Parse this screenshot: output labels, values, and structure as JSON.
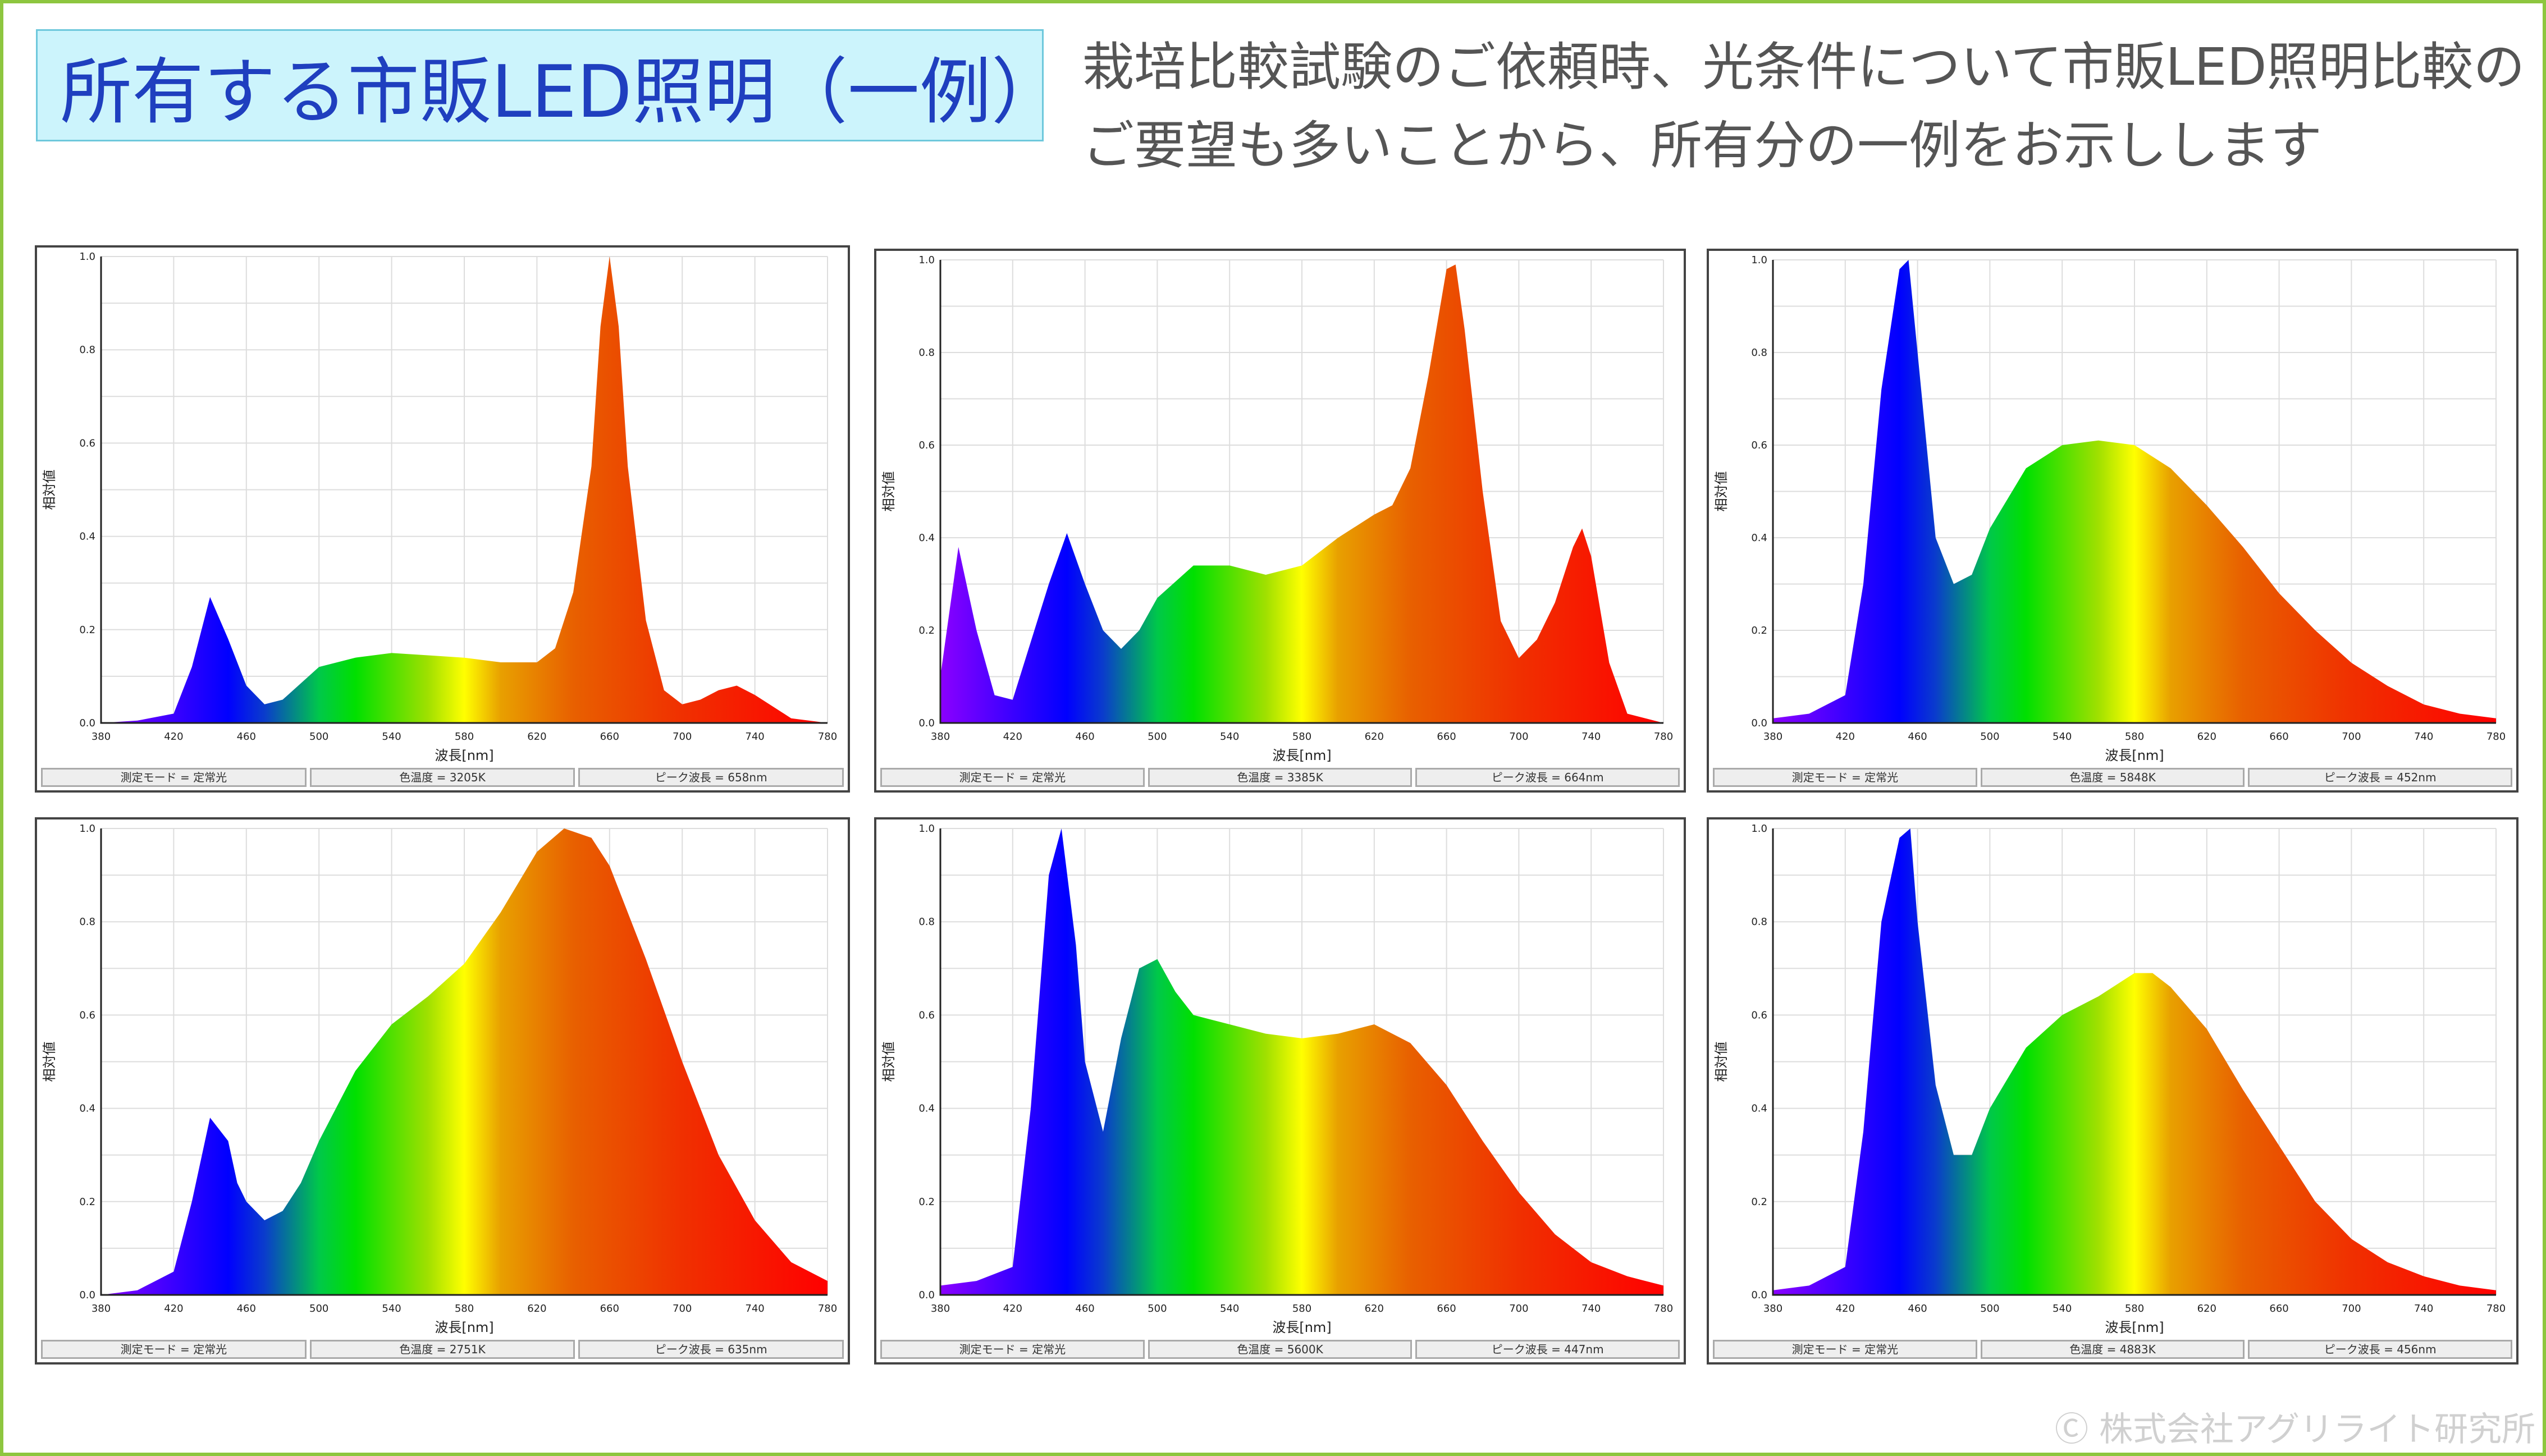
{
  "header": {
    "title": "所有する市販LED照明（一例）",
    "description_line1": "栽培比較試験のご依頼時、光条件について市販LED照明比較の",
    "description_line2": "ご要望も多いことから、所有分の一例をお示しします",
    "copyright": "Ⓒ 株式会社アグリライト研究所"
  },
  "colors": {
    "frame_border": "#8dc63f",
    "title_bg": "#ccf4fc",
    "title_text": "#1f3fbf"
  },
  "chart_axes": {
    "xlabel": "波長[nm]",
    "ylabel": "相対値",
    "xlim": [
      380,
      780
    ],
    "ylim": [
      0,
      1.0
    ],
    "xticks": [
      380,
      420,
      460,
      500,
      540,
      580,
      620,
      660,
      700,
      740,
      780
    ],
    "yticks": [
      "0.0",
      "0.2",
      "0.4",
      "0.6",
      "0.8",
      "1.0"
    ],
    "grid": true
  },
  "chart_data": [
    {
      "type": "area",
      "x": [
        380,
        400,
        420,
        430,
        440,
        450,
        460,
        470,
        480,
        500,
        520,
        540,
        560,
        580,
        600,
        620,
        630,
        640,
        650,
        655,
        660,
        665,
        670,
        680,
        690,
        700,
        710,
        720,
        730,
        740,
        760,
        780
      ],
      "y": [
        0,
        0.005,
        0.02,
        0.12,
        0.27,
        0.18,
        0.08,
        0.04,
        0.05,
        0.12,
        0.14,
        0.15,
        0.145,
        0.14,
        0.13,
        0.13,
        0.16,
        0.28,
        0.55,
        0.85,
        1.0,
        0.85,
        0.55,
        0.22,
        0.07,
        0.04,
        0.05,
        0.07,
        0.08,
        0.06,
        0.01,
        0.0
      ],
      "status": [
        "測定モード = 定常光",
        "色温度 = 3205K",
        "ピーク波長 = 658nm"
      ]
    },
    {
      "type": "area",
      "x": [
        380,
        390,
        400,
        410,
        420,
        440,
        450,
        460,
        470,
        480,
        490,
        500,
        520,
        540,
        560,
        580,
        600,
        620,
        630,
        640,
        650,
        660,
        665,
        670,
        680,
        690,
        700,
        710,
        720,
        730,
        735,
        740,
        750,
        760,
        780
      ],
      "y": [
        0.1,
        0.38,
        0.2,
        0.06,
        0.05,
        0.3,
        0.41,
        0.3,
        0.2,
        0.16,
        0.2,
        0.27,
        0.34,
        0.34,
        0.32,
        0.34,
        0.4,
        0.45,
        0.47,
        0.55,
        0.75,
        0.98,
        0.99,
        0.85,
        0.5,
        0.22,
        0.14,
        0.18,
        0.26,
        0.38,
        0.42,
        0.36,
        0.13,
        0.02,
        0.0
      ],
      "status": [
        "測定モード = 定常光",
        "色温度 = 3385K",
        "ピーク波長 = 664nm"
      ]
    },
    {
      "type": "area",
      "x": [
        380,
        400,
        420,
        430,
        440,
        450,
        455,
        460,
        470,
        480,
        490,
        500,
        520,
        540,
        560,
        580,
        600,
        620,
        640,
        660,
        680,
        700,
        720,
        740,
        760,
        780
      ],
      "y": [
        0.01,
        0.02,
        0.06,
        0.3,
        0.72,
        0.98,
        1.0,
        0.8,
        0.4,
        0.3,
        0.32,
        0.42,
        0.55,
        0.6,
        0.61,
        0.6,
        0.55,
        0.47,
        0.38,
        0.28,
        0.2,
        0.13,
        0.08,
        0.04,
        0.02,
        0.01
      ],
      "status": [
        "測定モード = 定常光",
        "色温度 = 5848K",
        "ピーク波長 = 452nm"
      ]
    },
    {
      "type": "area",
      "x": [
        380,
        400,
        420,
        430,
        440,
        450,
        455,
        460,
        470,
        480,
        490,
        500,
        520,
        540,
        560,
        580,
        600,
        620,
        635,
        650,
        660,
        680,
        700,
        720,
        740,
        760,
        780
      ],
      "y": [
        0.0,
        0.01,
        0.05,
        0.2,
        0.38,
        0.33,
        0.24,
        0.2,
        0.16,
        0.18,
        0.24,
        0.33,
        0.48,
        0.58,
        0.64,
        0.71,
        0.82,
        0.95,
        1.0,
        0.98,
        0.92,
        0.72,
        0.5,
        0.3,
        0.16,
        0.07,
        0.03
      ],
      "status": [
        "測定モード = 定常光",
        "色温度 = 2751K",
        "ピーク波長 = 635nm"
      ]
    },
    {
      "type": "area",
      "x": [
        380,
        400,
        420,
        430,
        440,
        447,
        455,
        460,
        470,
        480,
        490,
        500,
        510,
        520,
        540,
        560,
        580,
        600,
        620,
        640,
        660,
        680,
        700,
        720,
        740,
        760,
        780
      ],
      "y": [
        0.02,
        0.03,
        0.06,
        0.4,
        0.9,
        1.0,
        0.75,
        0.5,
        0.35,
        0.55,
        0.7,
        0.72,
        0.65,
        0.6,
        0.58,
        0.56,
        0.55,
        0.56,
        0.58,
        0.54,
        0.45,
        0.33,
        0.22,
        0.13,
        0.07,
        0.04,
        0.02
      ],
      "status": [
        "測定モード = 定常光",
        "色温度 = 5600K",
        "ピーク波長 = 447nm"
      ]
    },
    {
      "type": "area",
      "x": [
        380,
        400,
        420,
        430,
        440,
        450,
        456,
        460,
        470,
        480,
        490,
        500,
        520,
        540,
        560,
        580,
        590,
        600,
        620,
        640,
        660,
        680,
        700,
        720,
        740,
        760,
        780
      ],
      "y": [
        0.01,
        0.02,
        0.06,
        0.35,
        0.8,
        0.98,
        1.0,
        0.8,
        0.45,
        0.3,
        0.3,
        0.4,
        0.53,
        0.6,
        0.64,
        0.69,
        0.69,
        0.66,
        0.57,
        0.44,
        0.32,
        0.2,
        0.12,
        0.07,
        0.04,
        0.02,
        0.01
      ],
      "status": [
        "測定モード = 定常光",
        "色温度 = 4883K",
        "ピーク波長 = 456nm"
      ]
    }
  ]
}
